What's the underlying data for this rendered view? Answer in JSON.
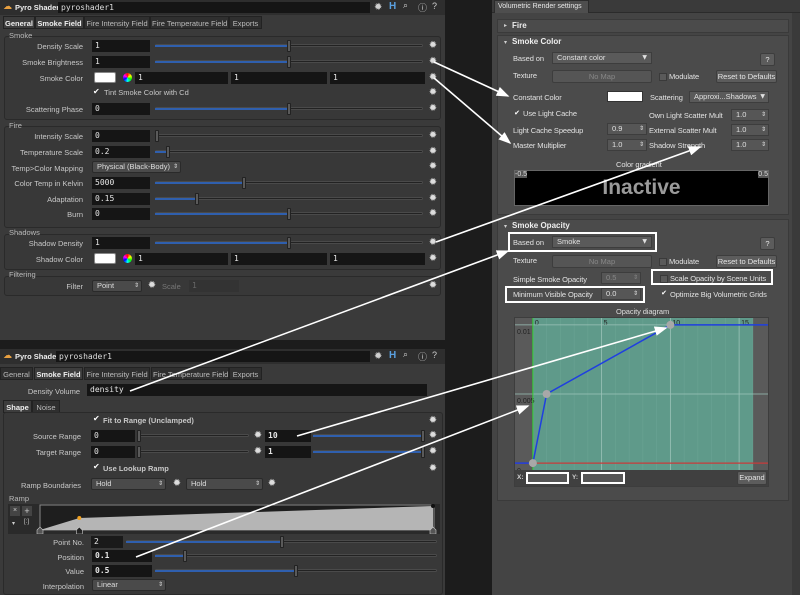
{
  "top_shader": {
    "type_label": "Pyro Shader",
    "node_name": "pyroshader1",
    "tabs": [
      "General",
      "Smoke Field",
      "Fire Intensity Field",
      "Fire Temperature Field",
      "Exports"
    ],
    "active_tabs": [
      "General",
      "Smoke Field"
    ],
    "smoke": {
      "group_label": "Smoke",
      "density_scale": {
        "label": "Density Scale",
        "value": "1",
        "slider": 0.5
      },
      "smoke_brightness": {
        "label": "Smoke Brightness",
        "value": "1",
        "slider": 0.5
      },
      "smoke_color": {
        "label": "Smoke Color",
        "r": "1",
        "g": "1",
        "b": "1",
        "swatch": "#ffffff"
      },
      "tint_label": "Tint Smoke Color with Cd",
      "tint_checked": true,
      "scattering_phase": {
        "label": "Scattering Phase",
        "value": "0",
        "slider": 0.5
      }
    },
    "fire": {
      "group_label": "Fire",
      "intensity_scale": {
        "label": "Intensity Scale",
        "value": "0",
        "slider": 0.0
      },
      "temperature_scale": {
        "label": "Temperature Scale",
        "value": "0.2",
        "slider": 0.04
      },
      "mapping": {
        "label": "Temp>Color Mapping",
        "value": "Physical (Black-Body)"
      },
      "kelvin": {
        "label": "Color Temp in Kelvin",
        "value": "5000",
        "slider": 0.33
      },
      "adaptation": {
        "label": "Adaptation",
        "value": "0.15",
        "slider": 0.15
      },
      "burn": {
        "label": "Burn",
        "value": "0",
        "slider": 0.5
      }
    },
    "shadows": {
      "group_label": "Shadows",
      "shadow_density": {
        "label": "Shadow Density",
        "value": "1",
        "slider": 0.5
      },
      "shadow_color": {
        "label": "Shadow Color",
        "r": "1",
        "g": "1",
        "b": "1",
        "swatch": "#ffffff"
      }
    },
    "filtering": {
      "group_label": "Filtering",
      "filter_label": "Filter",
      "filter_value": "Point",
      "scale_label": "Scale",
      "scale_value": "1"
    }
  },
  "bottom_shader": {
    "type_label": "Pyro Shader",
    "node_name": "pyroshader1",
    "tabs": [
      "General",
      "Smoke Field",
      "Fire Intensity Field",
      "Fire Temperature Field",
      "Exports"
    ],
    "active_tab": "Smoke Field",
    "density_volume": {
      "label": "Density Volume",
      "value": "density"
    },
    "subtabs": [
      "Shape",
      "Noise"
    ],
    "active_subtab": "Shape",
    "fit_label": "Fit to Range (Unclamped)",
    "fit_checked": true,
    "source_range": {
      "label": "Source Range",
      "min": "0",
      "max": "10"
    },
    "target_range": {
      "label": "Target Range",
      "min": "0",
      "max": "1"
    },
    "lookup_label": "Use Lookup Ramp",
    "lookup_checked": true,
    "ramp_boundaries": {
      "label": "Ramp Boundaries",
      "left": "Hold",
      "right": "Hold"
    },
    "ramp": {
      "label": "Ramp",
      "points": [
        {
          "position": 0,
          "value": 0
        },
        {
          "position": 0.1,
          "value": 0.5
        },
        {
          "position": 1,
          "value": 1
        }
      ],
      "selected_point": 2
    },
    "point_no": {
      "label": "Point No.",
      "value": "2",
      "slider": 0.5
    },
    "position": {
      "label": "Position",
      "value": "0.1",
      "slider": 0.1
    },
    "value": {
      "label": "Value",
      "value": "0.5",
      "slider": 0.5
    },
    "interpolation": {
      "label": "Interpolation",
      "value": "Linear"
    }
  },
  "vray": {
    "tab_label": "Volumetric Render settings",
    "fire_rollout": "Fire",
    "smoke_color": {
      "title": "Smoke Color",
      "based_on_label": "Based on",
      "based_on_value": "Constant color",
      "help": "?",
      "texture_label": "Texture",
      "texture_value": "No Map",
      "modulate_label": "Modulate",
      "reset_label": "Reset to Defaults",
      "constant_color_label": "Constant Color",
      "constant_color": "#ffffff",
      "scattering_label": "Scattering",
      "scattering_value": "Approxi...Shadows",
      "use_light_cache_label": "Use Light Cache",
      "use_light_cache": true,
      "own_scatter_label": "Own Light Scatter Mult",
      "own_scatter_value": "1.0",
      "light_cache_speedup_label": "Light Cache Speedup",
      "light_cache_speedup_value": "0.9",
      "external_scatter_label": "External Scatter Mult",
      "external_scatter_value": "1.0",
      "master_multiplier_label": "Master Multiplier",
      "master_multiplier_value": "1.0",
      "shadow_strength_label": "Shadow Strength",
      "shadow_strength_value": "1.0",
      "gradient_label": "Color gradient",
      "gradient_min": "-0.5",
      "gradient_max": "0.5",
      "gradient_state": "Inactive"
    },
    "smoke_opacity": {
      "title": "Smoke Opacity",
      "based_on_label": "Based on",
      "based_on_value": "Smoke",
      "help": "?",
      "texture_label": "Texture",
      "texture_value": "No Map",
      "modulate_label": "Modulate",
      "reset_label": "Reset to Defaults",
      "simple_opacity_label": "Simple Smoke Opacity",
      "simple_opacity_value": "0.5",
      "scale_by_units_label": "Scale Opacity by Scene Units",
      "scale_by_units": false,
      "min_visible_label": "Minimum Visible Opacity",
      "min_visible_value": "0.0",
      "optimize_label": "Optimize Big Volumetric Grids",
      "optimize": true,
      "x_label": "X:",
      "y_label": "Y:",
      "expand_label": "Expand"
    }
  },
  "chart_data": {
    "type": "line",
    "title": "Opacity diagram",
    "x_ticks": [
      "0",
      "5",
      "10",
      "15"
    ],
    "y_ticks": [
      "0",
      "0.005",
      "0.01"
    ],
    "xlim": [
      -1.3,
      17.1
    ],
    "ylim": [
      -0.0005,
      0.0105
    ],
    "points": [
      {
        "x": 0,
        "y": 0
      },
      {
        "x": 1,
        "y": 0.005
      },
      {
        "x": 10,
        "y": 0.01
      }
    ],
    "active_range": [
      0,
      16
    ],
    "colors": {
      "line": "#1f3fe0",
      "zero_axis": "#c83a3a",
      "y_axis": "#35d335",
      "region": "#5f9a8a",
      "point": "#a8a8a8"
    }
  }
}
